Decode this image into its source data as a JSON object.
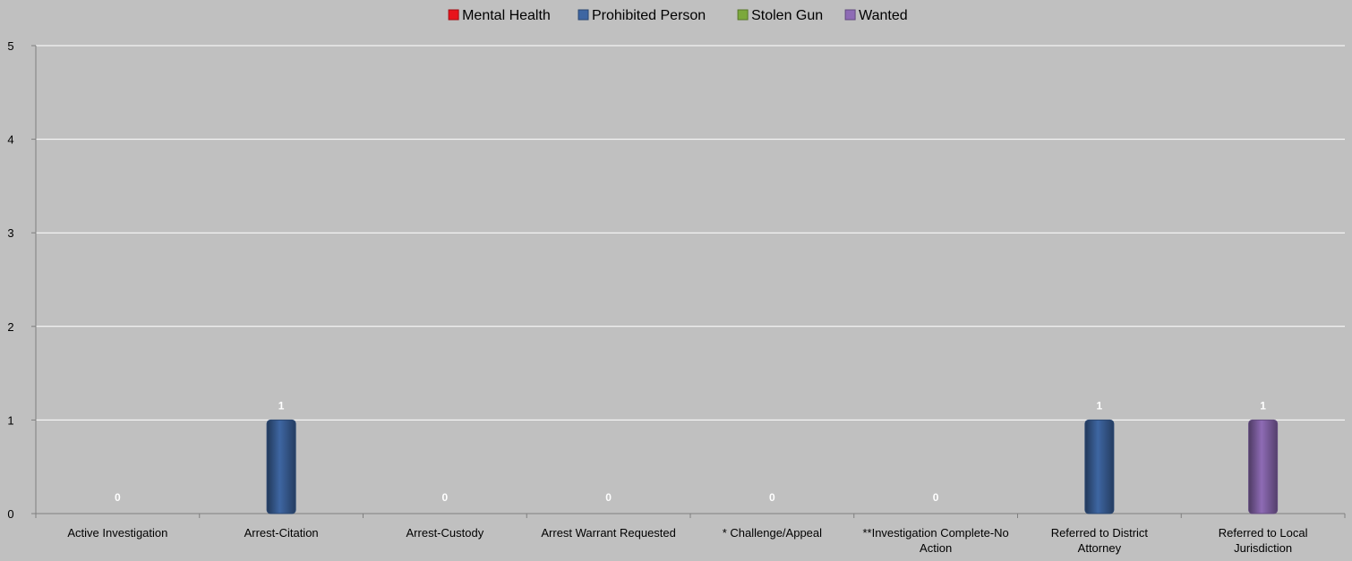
{
  "chart_data": {
    "type": "bar",
    "legend_position": "top-center",
    "grid": true,
    "ylim": [
      0,
      5
    ],
    "y_ticks": [
      "0",
      "1",
      "2",
      "3",
      "4",
      "5"
    ],
    "categories": [
      [
        "Active Investigation"
      ],
      [
        "Arrest-Citation"
      ],
      [
        "Arrest-Custody"
      ],
      [
        "Arrest Warrant Requested"
      ],
      [
        "* Challenge/Appeal"
      ],
      [
        "**Investigation Complete-No",
        "Action"
      ],
      [
        "Referred to District",
        "Attorney"
      ],
      [
        "Referred to Local",
        "Jurisdiction"
      ]
    ],
    "series": [
      {
        "name": "Mental Health",
        "color": "#e8141c",
        "values": [
          0,
          0,
          0,
          0,
          0,
          0,
          0,
          0
        ]
      },
      {
        "name": "Prohibited Person",
        "color": "#3e66a2",
        "values": [
          0,
          1,
          0,
          0,
          0,
          0,
          1,
          0
        ]
      },
      {
        "name": "Stolen Gun",
        "color": "#7ca83c",
        "values": [
          0,
          0,
          0,
          0,
          0,
          0,
          0,
          0
        ]
      },
      {
        "name": "Wanted",
        "color": "#8e6bb5",
        "values": [
          0,
          0,
          0,
          0,
          0,
          0,
          0,
          1
        ]
      }
    ],
    "data_labels": [
      {
        "category": 0,
        "text": "0"
      },
      {
        "category": 1,
        "text": "1"
      },
      {
        "category": 2,
        "text": "0"
      },
      {
        "category": 3,
        "text": "0"
      },
      {
        "category": 4,
        "text": "0"
      },
      {
        "category": 5,
        "text": "0"
      },
      {
        "category": 6,
        "text": "1"
      },
      {
        "category": 7,
        "text": "1"
      }
    ]
  }
}
